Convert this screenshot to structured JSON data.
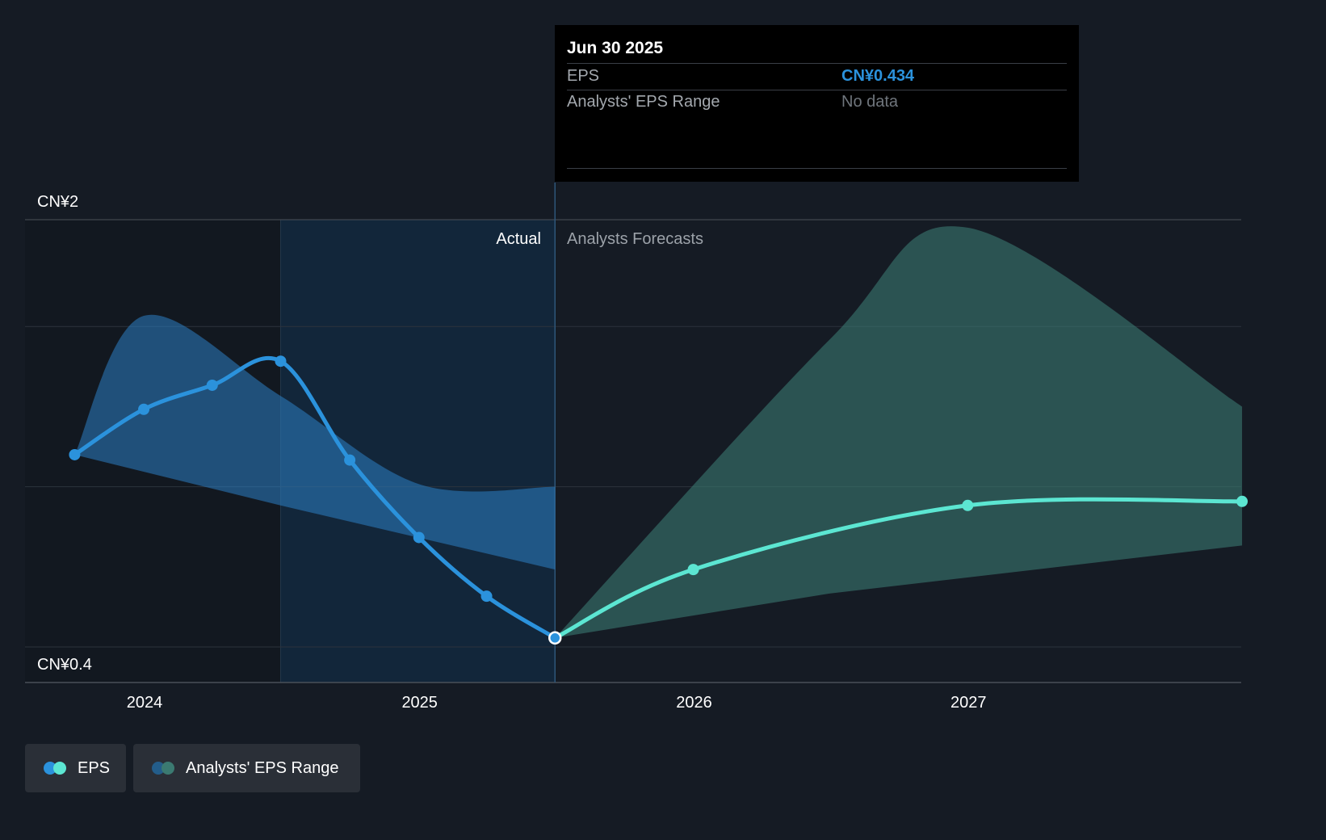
{
  "chart_data": {
    "type": "line",
    "x_ticks": [
      "2024",
      "2025",
      "2026",
      "2027"
    ],
    "y_range": [
      0.4,
      2
    ],
    "y_axis_labels": {
      "top": "CN¥2",
      "bottom": "CN¥0.4"
    },
    "regions": {
      "actual": "Actual",
      "forecast": "Analysts Forecasts"
    },
    "series": [
      {
        "name": "EPS",
        "kind": "actual",
        "color": "#2b92dc",
        "points": [
          {
            "x": "2023-09-30",
            "y": 1.12
          },
          {
            "x": "2023-12-31",
            "y": 1.29
          },
          {
            "x": "2024-03-31",
            "y": 1.38
          },
          {
            "x": "2024-06-30",
            "y": 1.47
          },
          {
            "x": "2024-09-30",
            "y": 1.1
          },
          {
            "x": "2024-12-31",
            "y": 0.81
          },
          {
            "x": "2025-03-31",
            "y": 0.59
          },
          {
            "x": "2025-06-30",
            "y": 0.434
          }
        ]
      },
      {
        "name": "EPS",
        "kind": "forecast",
        "color": "#5ce6d2",
        "points": [
          {
            "x": "2025-06-30",
            "y": 0.434
          },
          {
            "x": "2025-12-31",
            "y": 0.69
          },
          {
            "x": "2026-12-31",
            "y": 0.93
          },
          {
            "x": "2027-12-31",
            "y": 0.945
          }
        ]
      }
    ],
    "range_actual": {
      "color": "#2b7fc4",
      "upper": [
        {
          "x": "2023-09-30",
          "y": 1.12
        },
        {
          "x": "2023-12-31",
          "y": 1.64
        },
        {
          "x": "2024-06-30",
          "y": 1.34
        },
        {
          "x": "2024-12-31",
          "y": 1.01
        },
        {
          "x": "2025-06-30",
          "y": 1.0
        }
      ],
      "lower": [
        {
          "x": "2025-06-30",
          "y": 0.69
        },
        {
          "x": "2024-06-30",
          "y": 0.93
        },
        {
          "x": "2023-09-30",
          "y": 1.12
        }
      ]
    },
    "range_forecast": {
      "color": "#3b7a71",
      "upper": [
        {
          "x": "2025-06-30",
          "y": 0.434
        },
        {
          "x": "2026-06-30",
          "y": 1.55
        },
        {
          "x": "2026-12-31",
          "y": 1.97
        },
        {
          "x": "2027-12-31",
          "y": 1.3
        }
      ],
      "lower": [
        {
          "x": "2027-12-31",
          "y": 0.78
        },
        {
          "x": "2026-06-30",
          "y": 0.6
        },
        {
          "x": "2025-06-30",
          "y": 0.434
        }
      ]
    },
    "grid": true
  },
  "tooltip": {
    "date": "Jun 30 2025",
    "eps_label": "EPS",
    "eps_value": "CN¥0.434",
    "range_label": "Analysts' EPS Range",
    "range_value": "No data"
  },
  "legend": {
    "eps_label": "EPS",
    "range_label": "Analysts' EPS Range",
    "eps_colors": [
      "#2b92dc",
      "#5ce6d2"
    ],
    "range_colors": [
      "#235d8a",
      "#3b7a71"
    ]
  }
}
